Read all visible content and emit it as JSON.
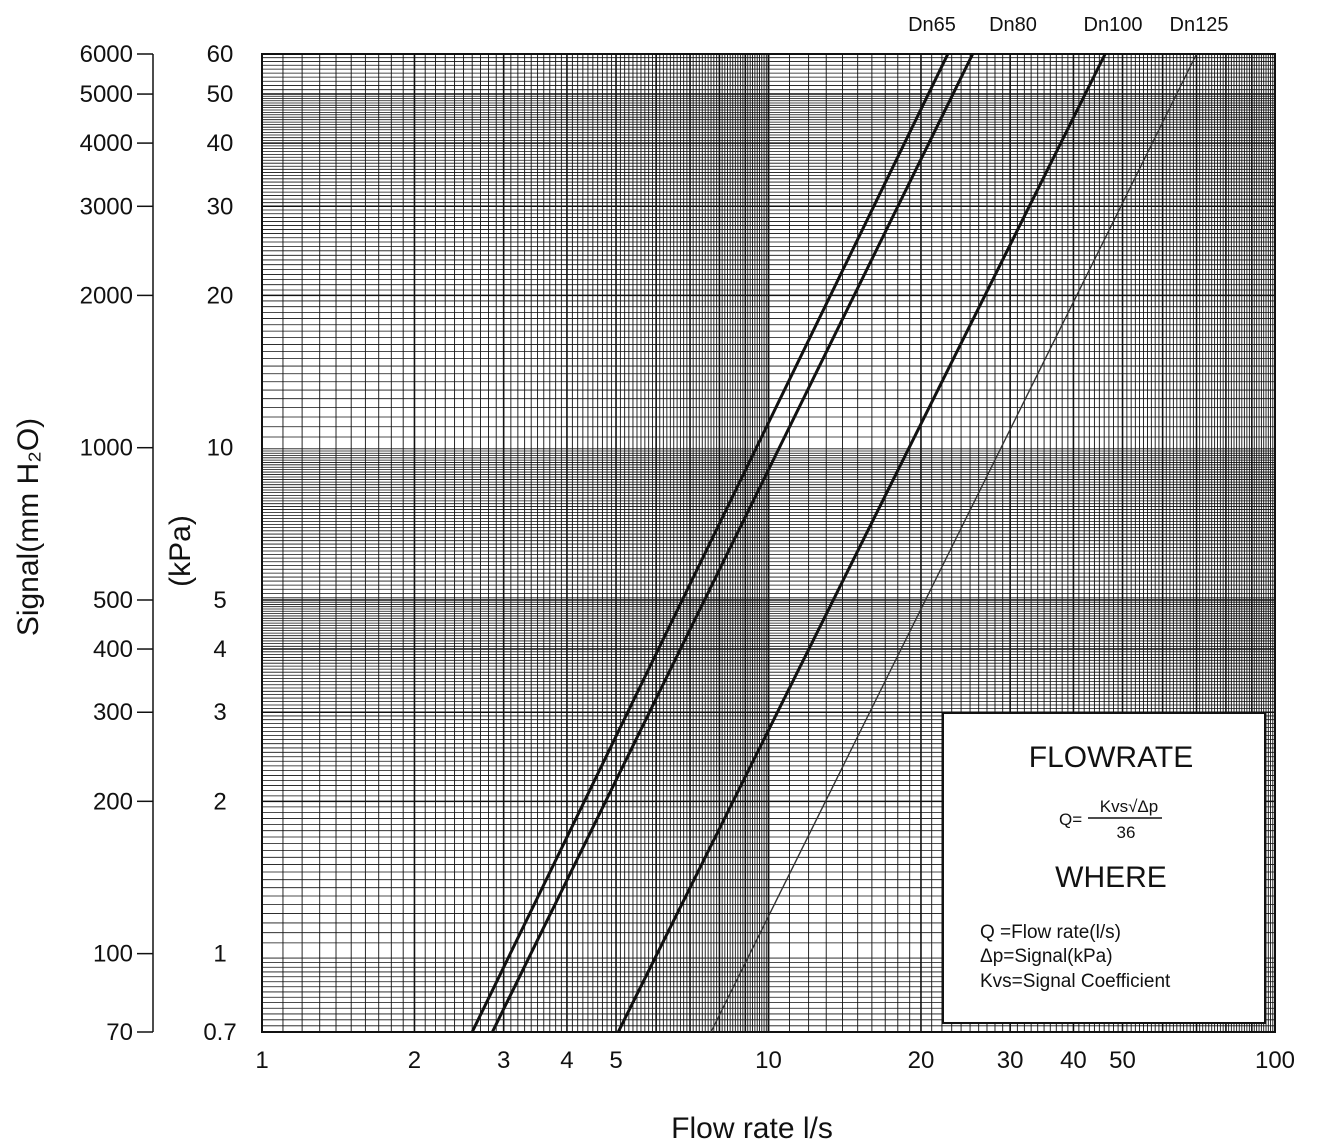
{
  "chart_data": {
    "type": "line",
    "scale": "log-log",
    "grid": true,
    "xlabel": "Flow rate l/s",
    "ylabel_left": "Signal(mm  H₂O)",
    "ylabel_inner": "(kPa)",
    "xlim": [
      1,
      100
    ],
    "ylim_kpa": [
      0.7,
      60
    ],
    "x_ticks": [
      "1",
      "2",
      "3",
      "4",
      "5",
      "10",
      "20",
      "30",
      "40",
      "50",
      "100"
    ],
    "x_tick_values": [
      1,
      2,
      3,
      4,
      5,
      10,
      20,
      30,
      40,
      50,
      100
    ],
    "y_ticks_kpa": [
      "0.7",
      "1",
      "2",
      "3",
      "4",
      "5",
      "10",
      "20",
      "30",
      "40",
      "50",
      "60"
    ],
    "y_tick_values_kpa": [
      0.7,
      1,
      2,
      3,
      4,
      5,
      10,
      20,
      30,
      40,
      50,
      60
    ],
    "y_ticks_mm": [
      "70",
      "100",
      "200",
      "300",
      "400",
      "500",
      "1000",
      "2000",
      "3000",
      "4000",
      "5000",
      "6000"
    ],
    "y_tick_values_mm": [
      70,
      100,
      200,
      300,
      400,
      500,
      1000,
      2000,
      3000,
      4000,
      5000,
      6000
    ],
    "series": [
      {
        "name": "Dn65",
        "x": [
          2.6,
          22.6
        ],
        "y": [
          0.7,
          60
        ],
        "stroke": "#111111",
        "weight": "heavy"
      },
      {
        "name": "Dn80",
        "x": [
          2.85,
          25.3
        ],
        "y": [
          0.7,
          60
        ],
        "stroke": "#111111",
        "weight": "heavy"
      },
      {
        "name": "Dn100",
        "x": [
          5.05,
          46.2
        ],
        "y": [
          0.7,
          60
        ],
        "stroke": "#111111",
        "weight": "heavy"
      },
      {
        "name": "Dn125",
        "x": [
          7.7,
          70
        ],
        "y": [
          0.7,
          60
        ],
        "stroke": "#333333",
        "weight": "light"
      }
    ],
    "info_box": {
      "title": "FLOWRATE",
      "formula_left": "Q=",
      "formula_num": "Kvs√Δp",
      "formula_den": "36",
      "where": "WHERE",
      "lines": [
        "Q  =Flow rate(l/s)",
        "Δp=Signal(kPa)",
        "Kvs=Signal Coefficient"
      ]
    }
  }
}
